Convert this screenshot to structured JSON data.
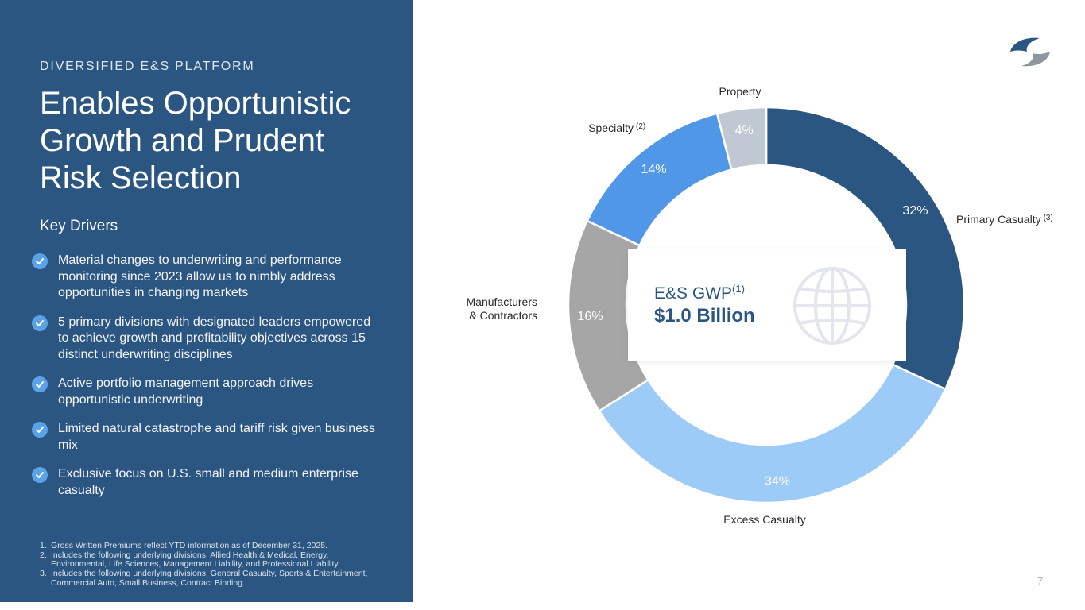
{
  "header": {
    "eyebrow": "DIVERSIFIED E&S PLATFORM"
  },
  "title": "Enables Opportunistic Growth and Prudent Risk Selection",
  "key_drivers": {
    "heading": "Key Drivers",
    "items": [
      "Material changes to underwriting and performance monitoring since 2023 allow us to nimbly address opportunities in changing markets",
      "5 primary divisions with designated leaders empowered to achieve growth and profitability objectives across 15 distinct underwriting disciplines",
      "Active portfolio management approach drives opportunistic underwriting",
      "Limited natural catastrophe and tariff risk given business mix",
      "Exclusive focus on U.S. small and medium enterprise casualty"
    ]
  },
  "footnotes": [
    {
      "num": "1.",
      "text": "Gross Written Premiums reflect YTD information as of December 31, 2025."
    },
    {
      "num": "2.",
      "text": "Includes the following underlying divisions, Allied Health & Medical, Energy, Environmental, Life Sciences, Management Liability, and Professional Liability."
    },
    {
      "num": "3.",
      "text": "Includes the following underlying divisions, General Casualty, Sports & Entertainment, Commercial Auto, Small Business, Contract Binding."
    }
  ],
  "center": {
    "label": "E&S GWP",
    "label_sup": "(1)",
    "value": "$1.0 Billion"
  },
  "page_number": "7",
  "colors": {
    "panel": "#2c5682",
    "accent": "#5ba3e8"
  },
  "chart_data": {
    "type": "pie",
    "variant": "donut",
    "title": "E&S GWP",
    "total_label": "$1.0 Billion",
    "categories": [
      "Primary Casualty",
      "Excess Casualty",
      "Manufacturers & Contractors",
      "Specialty",
      "Property"
    ],
    "values": [
      32,
      34,
      16,
      14,
      4
    ],
    "value_labels": [
      "32%",
      "34%",
      "16%",
      "14%",
      "4%"
    ],
    "footnote_marks": [
      "(3)",
      "",
      "",
      "(2)",
      ""
    ],
    "colors": [
      "#2c5682",
      "#9ccbf7",
      "#a6a6a6",
      "#5097e8",
      "#c0c8d4"
    ],
    "label_colors": [
      "#ffffff",
      "#ffffff",
      "#ffffff",
      "#ffffff",
      "#ffffff"
    ],
    "start_angle_deg": 0,
    "direction": "clockwise"
  }
}
